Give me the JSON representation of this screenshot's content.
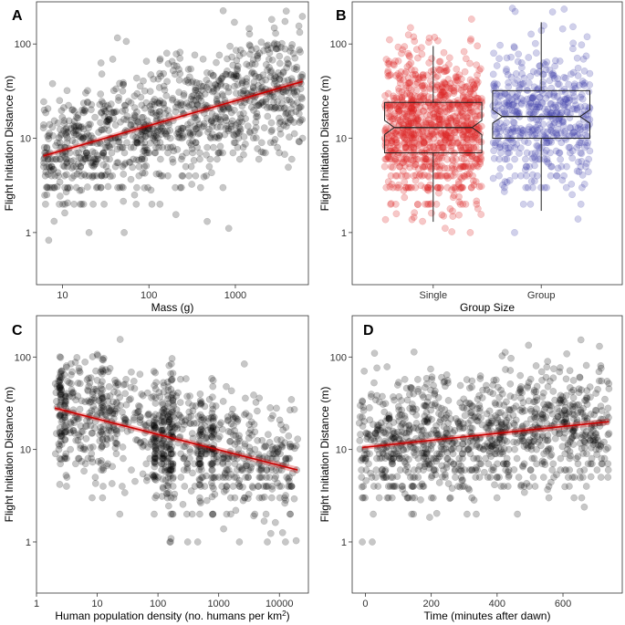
{
  "chart_data": [
    {
      "panel": "A",
      "type": "scatter",
      "xlabel": "Mass (g)",
      "ylabel": "Flight Initiation Distance (m)",
      "xscale": "log",
      "yscale": "log",
      "xlim": [
        5,
        7000
      ],
      "ylim": [
        0.28,
        280
      ],
      "xticks": [
        10,
        100,
        1000
      ],
      "xtick_labels": [
        "10",
        "100",
        "1000"
      ],
      "yticks": [
        1,
        10,
        100
      ],
      "ytick_labels": [
        "1",
        "10",
        "100"
      ],
      "point_color": "#000000",
      "fit_line": {
        "x": [
          6,
          6000
        ],
        "y": [
          6.5,
          40
        ],
        "color": "#cc0000"
      },
      "grid": false
    },
    {
      "panel": "B",
      "type": "box",
      "xlabel": "Group Size",
      "ylabel": "Flight Initiation Distance (m)",
      "yscale": "log",
      "ylim": [
        0.28,
        280
      ],
      "yticks": [
        1,
        10,
        100
      ],
      "ytick_labels": [
        "1",
        "10",
        "100"
      ],
      "categories": [
        "Single",
        "Group"
      ],
      "colors": [
        "#dd2222",
        "#4444aa"
      ],
      "boxes": [
        {
          "category": "Single",
          "whisker_low": 1.3,
          "q1": 7,
          "median": 13,
          "q3": 24,
          "whisker_high": 95
        },
        {
          "category": "Group",
          "whisker_low": 1.7,
          "q1": 10,
          "median": 17,
          "q3": 32,
          "whisker_high": 170
        }
      ],
      "grid": false
    },
    {
      "panel": "C",
      "type": "scatter",
      "xlabel": "Human population density (no. humans per km",
      "xlabel_sup": "2",
      "xlabel_end": ")",
      "ylabel": "Flight Initiation Distance (m)",
      "xscale": "log",
      "yscale": "log",
      "xlim": [
        1,
        30000
      ],
      "ylim": [
        0.28,
        280
      ],
      "xticks": [
        1,
        10,
        100,
        1000,
        10000
      ],
      "xtick_labels": [
        "1",
        "10",
        "100",
        "1000",
        "10000"
      ],
      "yticks": [
        1,
        10,
        100
      ],
      "ytick_labels": [
        "1",
        "10",
        "100"
      ],
      "point_color": "#000000",
      "fit_line": {
        "x": [
          2,
          20000
        ],
        "y": [
          28,
          6
        ],
        "color": "#cc0000"
      },
      "grid": false
    },
    {
      "panel": "D",
      "type": "scatter",
      "xlabel": "Time (minutes after dawn)",
      "ylabel": "Flight Initiation Distance (m)",
      "xscale": "linear",
      "yscale": "log",
      "xlim": [
        -40,
        780
      ],
      "ylim": [
        0.28,
        280
      ],
      "xticks": [
        0,
        200,
        400,
        600
      ],
      "xtick_labels": [
        "0",
        "200",
        "400",
        "600"
      ],
      "yticks": [
        1,
        10,
        100
      ],
      "ytick_labels": [
        "1",
        "10",
        "100"
      ],
      "point_color": "#000000",
      "fit_line": {
        "x": [
          -10,
          740
        ],
        "y": [
          10.5,
          20
        ],
        "color": "#cc0000"
      },
      "grid": false
    }
  ]
}
